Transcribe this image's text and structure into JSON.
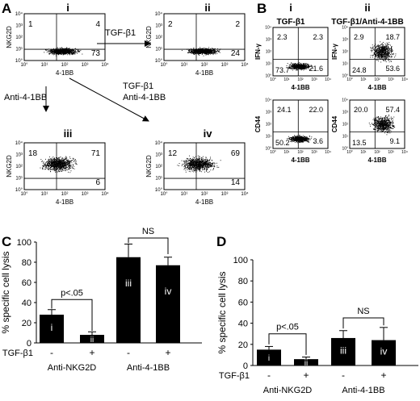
{
  "panel_letters": [
    "A",
    "B",
    "C",
    "D"
  ],
  "a_plots": [
    {
      "roman": "i",
      "ylabel": "NKG2D",
      "xlabel": "4-1BB",
      "q_ul": "1",
      "q_ur": "4",
      "q_lr": "73",
      "q_ll": "",
      "cluster": "low"
    },
    {
      "roman": "ii",
      "ylabel": "NKG2D",
      "xlabel": "4-1BB",
      "q_ul": "2",
      "q_ur": "2",
      "q_lr": "24",
      "q_ll": "",
      "cluster": "low"
    },
    {
      "roman": "iii",
      "ylabel": "NKG2D",
      "xlabel": "4-1BB",
      "q_ul": "18",
      "q_ur": "71",
      "q_lr": "6",
      "q_ll": "",
      "cluster": "high"
    },
    {
      "roman": "iv",
      "ylabel": "NKG2D",
      "xlabel": "4-1BB",
      "q_ul": "12",
      "q_ur": "69",
      "q_lr": "14",
      "q_ll": "",
      "cluster": "high"
    }
  ],
  "a_axis": {
    "ticks": [
      "10°",
      "10¹",
      "10²",
      "10³",
      "10⁴"
    ]
  },
  "a_arrows": {
    "tgf": "TGF-β1",
    "tgf_anti_1": "TGF-β1",
    "tgf_anti_2": "Anti-4-1BB",
    "anti": "Anti-4-1BB"
  },
  "b_columns": [
    {
      "roman": "i",
      "title": "TGF-β1"
    },
    {
      "roman": "ii",
      "title": "TGF-β1/Anti-4-1BB"
    }
  ],
  "b_plots": [
    {
      "ylabel": "IFN-γ",
      "xlabel": "4-1BB",
      "q_ul": "2.3",
      "q_ur": "2.3",
      "q_lr": "21.6",
      "q_ll": "73.7",
      "cluster": "low"
    },
    {
      "ylabel": "IFN-γ",
      "xlabel": "4-1BB",
      "q_ul": "2.9",
      "q_ur": "18.7",
      "q_lr": "53.6",
      "q_ll": "24.8",
      "cluster": "right"
    },
    {
      "ylabel": "CD44",
      "xlabel": "4-1BB",
      "q_ul": "24.1",
      "q_ur": "22.0",
      "q_lr": "3.6",
      "q_ll": "50.2",
      "cluster": "low"
    },
    {
      "ylabel": "CD44",
      "xlabel": "4-1BB",
      "q_ul": "20.0",
      "q_ur": "57.4",
      "q_lr": "9.1",
      "q_ll": "13.5",
      "cluster": "right"
    }
  ],
  "b_axis": {
    "ticks": [
      "10°",
      "10¹",
      "10²",
      "10³",
      "10⁴"
    ]
  },
  "chart_data": [
    {
      "type": "bar",
      "panel": "C",
      "ylabel": "% specific cell lysis",
      "ylim": [
        0,
        100
      ],
      "yticks": [
        0,
        20,
        40,
        60,
        80,
        100
      ],
      "categories": [
        "i",
        "ii",
        "iii",
        "iv"
      ],
      "values": [
        28,
        8,
        85,
        77
      ],
      "errors": [
        5,
        3,
        13,
        8
      ],
      "tgf_label": "TGF-β1",
      "tgf_signs": [
        "-",
        "+",
        "-",
        "+"
      ],
      "groups": [
        "Anti-NKG2D",
        "Anti-4-1BB"
      ],
      "annotations": [
        "p<.05",
        "NS"
      ]
    },
    {
      "type": "bar",
      "panel": "D",
      "ylabel": "% specific cell lysis",
      "ylim": [
        0,
        100
      ],
      "yticks": [
        0,
        20,
        40,
        60,
        80,
        100
      ],
      "categories": [
        "i",
        "ii",
        "iii",
        "iv"
      ],
      "values": [
        15,
        6,
        26,
        24
      ],
      "errors": [
        3,
        2,
        7,
        12
      ],
      "tgf_label": "TGF-β1",
      "tgf_signs": [
        "-",
        "+",
        "-",
        "+"
      ],
      "groups": [
        "Anti-NKG2D",
        "Anti-4-1BB"
      ],
      "annotations": [
        "p<.05",
        "NS"
      ]
    }
  ]
}
